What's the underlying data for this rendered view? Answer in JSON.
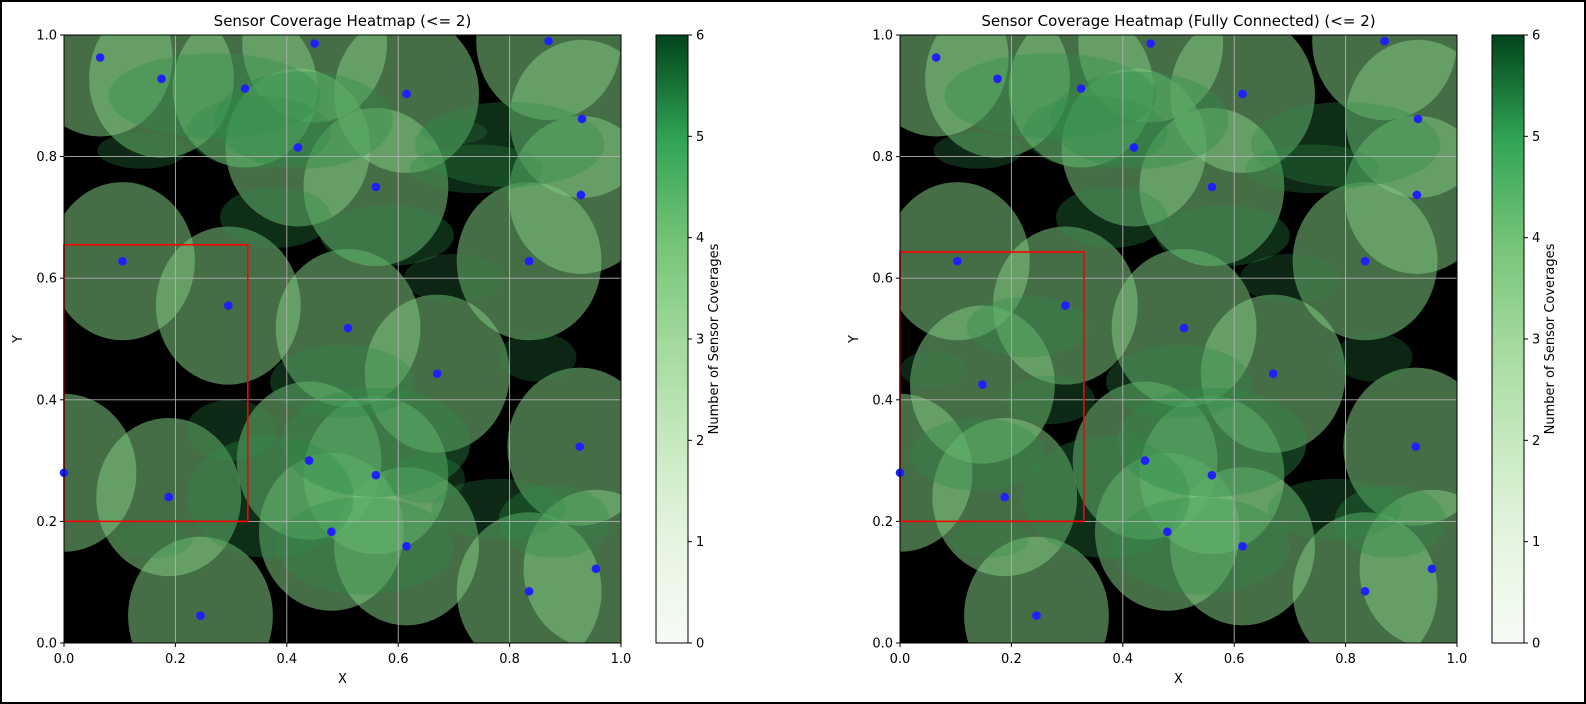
{
  "colors": {
    "background": "#000000",
    "grid": "#b0b0b0",
    "sensor_point": "#1f1fff",
    "region_box": "#ff0000",
    "cmap_low": "#f7fcf5",
    "cmap_high": "#00441b"
  },
  "chart_data": [
    {
      "type": "heatmap",
      "title": "Sensor Coverage Heatmap (<= 2)",
      "xlabel": "X",
      "ylabel": "Y",
      "xlim": [
        0.0,
        1.0
      ],
      "ylim": [
        0.0,
        1.0
      ],
      "x_ticks": [
        "0.0",
        "0.2",
        "0.4",
        "0.6",
        "0.8",
        "1.0"
      ],
      "y_ticks": [
        "0.0",
        "0.2",
        "0.4",
        "0.6",
        "0.8",
        "1.0"
      ],
      "grid": true,
      "colorbar": {
        "label": "Number of Sensor Coverages",
        "range": [
          0,
          6
        ],
        "ticks": [
          "0",
          "1",
          "2",
          "3",
          "4",
          "5",
          "6"
        ]
      },
      "highlight_region": {
        "x0": 0.0,
        "y0": 0.2,
        "x1": 0.33,
        "y1": 0.655
      },
      "sensors": [
        {
          "x": 0.065,
          "y": 0.963
        },
        {
          "x": 0.175,
          "y": 0.928
        },
        {
          "x": 0.325,
          "y": 0.912
        },
        {
          "x": 0.45,
          "y": 0.986
        },
        {
          "x": 0.87,
          "y": 0.99
        },
        {
          "x": 0.615,
          "y": 0.903
        },
        {
          "x": 0.93,
          "y": 0.862
        },
        {
          "x": 0.42,
          "y": 0.815
        },
        {
          "x": 0.56,
          "y": 0.75
        },
        {
          "x": 0.928,
          "y": 0.737
        },
        {
          "x": 0.835,
          "y": 0.628
        },
        {
          "x": 0.105,
          "y": 0.628
        },
        {
          "x": 0.295,
          "y": 0.555
        },
        {
          "x": 0.51,
          "y": 0.518
        },
        {
          "x": 0.67,
          "y": 0.443
        },
        {
          "x": 0.0,
          "y": 0.28
        },
        {
          "x": 0.188,
          "y": 0.24
        },
        {
          "x": 0.44,
          "y": 0.3
        },
        {
          "x": 0.56,
          "y": 0.276
        },
        {
          "x": 0.48,
          "y": 0.183
        },
        {
          "x": 0.615,
          "y": 0.159
        },
        {
          "x": 0.245,
          "y": 0.045
        },
        {
          "x": 0.835,
          "y": 0.085
        },
        {
          "x": 0.926,
          "y": 0.323
        },
        {
          "x": 0.955,
          "y": 0.122
        }
      ]
    },
    {
      "type": "heatmap",
      "title": "Sensor Coverage Heatmap (Fully Connected) (<= 2)",
      "xlabel": "X",
      "ylabel": "Y",
      "xlim": [
        0.0,
        1.0
      ],
      "ylim": [
        0.0,
        1.0
      ],
      "x_ticks": [
        "0.0",
        "0.2",
        "0.4",
        "0.6",
        "0.8",
        "1.0"
      ],
      "y_ticks": [
        "0.0",
        "0.2",
        "0.4",
        "0.6",
        "0.8",
        "1.0"
      ],
      "grid": true,
      "colorbar": {
        "label": "Number of Sensor Coverages",
        "range": [
          0,
          6
        ],
        "ticks": [
          "0",
          "1",
          "2",
          "3",
          "4",
          "5",
          "6"
        ]
      },
      "highlight_region": {
        "x0": 0.0,
        "y0": 0.2,
        "x1": 0.33,
        "y1": 0.643
      },
      "sensors": [
        {
          "x": 0.065,
          "y": 0.963
        },
        {
          "x": 0.175,
          "y": 0.928
        },
        {
          "x": 0.325,
          "y": 0.912
        },
        {
          "x": 0.45,
          "y": 0.986
        },
        {
          "x": 0.87,
          "y": 0.99
        },
        {
          "x": 0.615,
          "y": 0.903
        },
        {
          "x": 0.93,
          "y": 0.862
        },
        {
          "x": 0.42,
          "y": 0.815
        },
        {
          "x": 0.56,
          "y": 0.75
        },
        {
          "x": 0.928,
          "y": 0.737
        },
        {
          "x": 0.835,
          "y": 0.628
        },
        {
          "x": 0.103,
          "y": 0.628
        },
        {
          "x": 0.297,
          "y": 0.555
        },
        {
          "x": 0.51,
          "y": 0.518
        },
        {
          "x": 0.67,
          "y": 0.443
        },
        {
          "x": 0.0,
          "y": 0.28
        },
        {
          "x": 0.188,
          "y": 0.24
        },
        {
          "x": 0.44,
          "y": 0.3
        },
        {
          "x": 0.56,
          "y": 0.276
        },
        {
          "x": 0.48,
          "y": 0.183
        },
        {
          "x": 0.615,
          "y": 0.159
        },
        {
          "x": 0.245,
          "y": 0.045
        },
        {
          "x": 0.835,
          "y": 0.085
        },
        {
          "x": 0.926,
          "y": 0.323
        },
        {
          "x": 0.955,
          "y": 0.122
        },
        {
          "x": 0.148,
          "y": 0.425
        }
      ]
    }
  ]
}
